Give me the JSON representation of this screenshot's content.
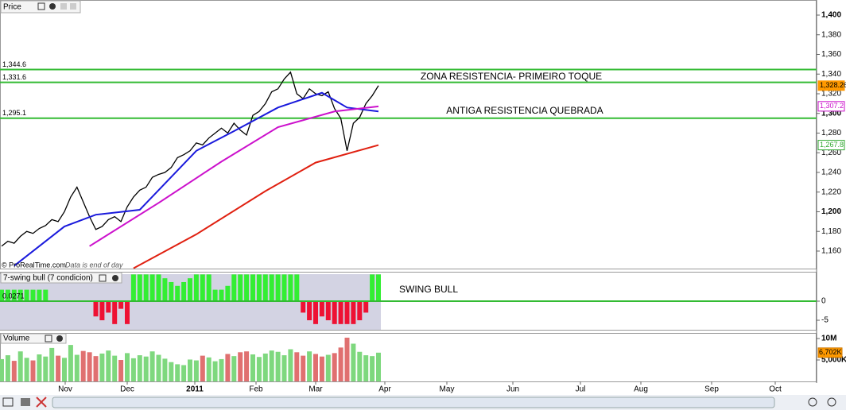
{
  "header": {
    "price_panel": "Price",
    "swing_panel": "7-swing bull (7 condicion)",
    "volume_panel": "Volume",
    "watermark": "© ProRealTime.com",
    "watermark_note": "Data is end of day"
  },
  "x_labels": [
    "Nov",
    "Dec",
    "2011",
    "Feb",
    "Mar",
    "Apr",
    "May",
    "Jun",
    "Jul",
    "Aug",
    "Sep",
    "Oct"
  ],
  "chart_data": [
    {
      "type": "line",
      "series": [
        {
          "color": "#000000",
          "values": [
            1165,
            1170,
            1168,
            1175,
            1180,
            1178,
            1183,
            1186,
            1192,
            1190,
            1200,
            1215,
            1225,
            1210,
            1195,
            1182,
            1185,
            1192,
            1195,
            1190,
            1205,
            1215,
            1222,
            1225,
            1235,
            1238,
            1240,
            1245,
            1255,
            1258,
            1262,
            1270,
            1268,
            1275,
            1280,
            1285,
            1280,
            1290,
            1283,
            1278,
            1298,
            1302,
            1310,
            1322,
            1325,
            1335,
            1342,
            1320,
            1315,
            1325,
            1320,
            1318,
            1322,
            1305,
            1295,
            1262,
            1290,
            1296,
            1310,
            1318,
            1328.26
          ]
        },
        {
          "color": "#1a1adc",
          "x": [
            2,
            10,
            15,
            22,
            31,
            37,
            44,
            51,
            55,
            60
          ],
          "values": [
            1145,
            1185,
            1197,
            1202,
            1262,
            1282,
            1306,
            1321,
            1306,
            1302
          ]
        },
        {
          "color": "#cc11cc",
          "x": [
            14,
            16,
            25,
            35,
            44,
            53,
            60
          ],
          "values": [
            1165,
            1173,
            1209,
            1251,
            1286,
            1302,
            1307.2
          ]
        },
        {
          "color": "#e02010",
          "x": [
            21,
            31,
            42,
            50,
            60
          ],
          "values": [
            1142.5,
            1177,
            1221,
            1250,
            1267.8
          ]
        }
      ],
      "levels": [
        {
          "value": 1344.6,
          "label": "1,344.6"
        },
        {
          "value": 1331.6,
          "label": "1,331.6"
        },
        {
          "value": 1295.1,
          "label": "1,295.1"
        }
      ],
      "level_color": "#33bb33",
      "annotations": [
        "ZONA RESISTENCIA- PRIMEIRO TOQUE",
        "ANTIGA RESISTENCIA QUEBRADA"
      ],
      "last_values": [
        {
          "value": 1328.26,
          "label": "1,328.26",
          "color": "#ff9900"
        },
        {
          "value": 1307.2,
          "label": "1,307.2",
          "color": "#cc11cc"
        },
        {
          "value": 1267.8,
          "label": "1,267.8",
          "color": "#33aa33"
        }
      ],
      "ylim": [
        1142.2,
        1415.35
      ],
      "yticks": [
        {
          "value": 1160,
          "label": "1,160"
        },
        {
          "value": 1180,
          "label": "1,180"
        },
        {
          "value": 1200,
          "label": "1,200"
        },
        {
          "value": 1220,
          "label": "1,220"
        },
        {
          "value": 1240,
          "label": "1,240"
        },
        {
          "value": 1260,
          "label": "1,260"
        },
        {
          "value": 1280,
          "label": "1,280"
        },
        {
          "value": 1300,
          "label": "1,300"
        },
        {
          "value": 1320,
          "label": "1,320"
        },
        {
          "value": 1340,
          "label": "1,340"
        },
        {
          "value": 1360,
          "label": "1,360"
        },
        {
          "value": 1380,
          "label": "1,380"
        },
        {
          "value": 1400,
          "label": "1,400"
        }
      ]
    },
    {
      "type": "bar",
      "values": [
        3,
        3,
        3,
        3,
        3,
        3,
        3,
        3,
        0,
        0,
        0,
        0,
        0,
        0,
        0,
        -4,
        -5,
        -3,
        -6,
        -2,
        -6,
        7,
        7,
        7,
        7,
        7,
        6,
        5,
        4,
        5,
        6,
        7,
        7,
        7,
        3,
        3,
        4,
        7,
        7,
        7,
        7,
        7,
        7,
        7,
        7,
        7,
        7,
        7,
        -3,
        -5,
        -6,
        -4,
        -5,
        -6,
        -6,
        -6,
        -6,
        -5,
        -3,
        7,
        7
      ],
      "positive_color": "#33ee33",
      "negative_color": "#ee1133",
      "current_label": "0.0271",
      "annotation": "SWING BULL",
      "ylim": [
        -7.7,
        7.7
      ],
      "yticks": [
        0,
        -5
      ]
    },
    {
      "type": "bar",
      "values": [
        5200000,
        6100000,
        4800000,
        7000000,
        5500000,
        4900000,
        6300000,
        5800000,
        7800000,
        6000000,
        5500000,
        8500000,
        6200000,
        7100000,
        6800000,
        5900000,
        6500000,
        7200000,
        6000000,
        5000000,
        6600000,
        5400000,
        6100000,
        5800000,
        7000000,
        6200000,
        5300000,
        4500000,
        4000000,
        3800000,
        5100000,
        4900000,
        6000000,
        5600000,
        4700000,
        5200000,
        6400000,
        5900000,
        6800000,
        7000000,
        6300000,
        5700000,
        6500000,
        7200000,
        6900000,
        6100000,
        7500000,
        6800000,
        6000000,
        7000000,
        6400000,
        5800000,
        6200000,
        6600000,
        7900000,
        10200000,
        8800000,
        6900000,
        6100000,
        5900000,
        6702000
      ],
      "up_color": "#7ed87e",
      "down_color": "#e07070",
      "last_value": {
        "value": 6702000,
        "label": "6,702K"
      },
      "ylim": [
        0,
        11300000
      ],
      "yticks": [
        {
          "value": 10000000,
          "label": "10M"
        },
        {
          "value": 5000000,
          "label": "5,000K"
        }
      ]
    }
  ]
}
